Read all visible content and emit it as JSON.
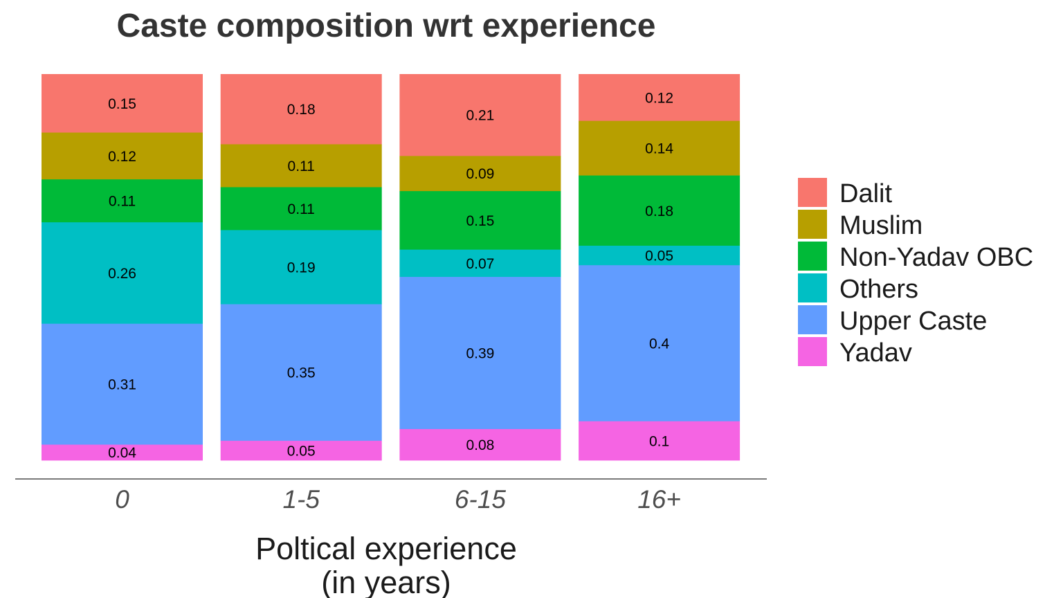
{
  "chart_data": {
    "type": "bar",
    "stacked": true,
    "title": "Caste composition wrt experience",
    "xlabel": "Poltical experience\n(in years)",
    "ylabel": "",
    "ylim": [
      0,
      1
    ],
    "grid": false,
    "legend_position": "right",
    "categories": [
      "0",
      "1-5",
      "6-15",
      "16+"
    ],
    "series": [
      {
        "name": "Dalit",
        "color": "#F8766D",
        "values": [
          0.15,
          0.18,
          0.21,
          0.12
        ],
        "labels": [
          "0.15",
          "0.18",
          "0.21",
          "0.12"
        ]
      },
      {
        "name": "Muslim",
        "color": "#B79F00",
        "values": [
          0.12,
          0.11,
          0.09,
          0.14
        ],
        "labels": [
          "0.12",
          "0.11",
          "0.09",
          "0.14"
        ]
      },
      {
        "name": "Non-Yadav OBC",
        "color": "#00BA38",
        "values": [
          0.11,
          0.11,
          0.15,
          0.18
        ],
        "labels": [
          "0.11",
          "0.11",
          "0.15",
          "0.18"
        ]
      },
      {
        "name": "Others",
        "color": "#00BFC4",
        "values": [
          0.26,
          0.19,
          0.07,
          0.05
        ],
        "labels": [
          "0.26",
          "0.19",
          "0.07",
          "0.05"
        ]
      },
      {
        "name": "Upper Caste",
        "color": "#619CFF",
        "values": [
          0.31,
          0.35,
          0.39,
          0.4
        ],
        "labels": [
          "0.31",
          "0.35",
          "0.39",
          "0.4"
        ]
      },
      {
        "name": "Yadav",
        "color": "#F564E3",
        "values": [
          0.04,
          0.05,
          0.08,
          0.1
        ],
        "labels": [
          "0.04",
          "0.05",
          "0.08",
          "0.1"
        ]
      }
    ]
  }
}
